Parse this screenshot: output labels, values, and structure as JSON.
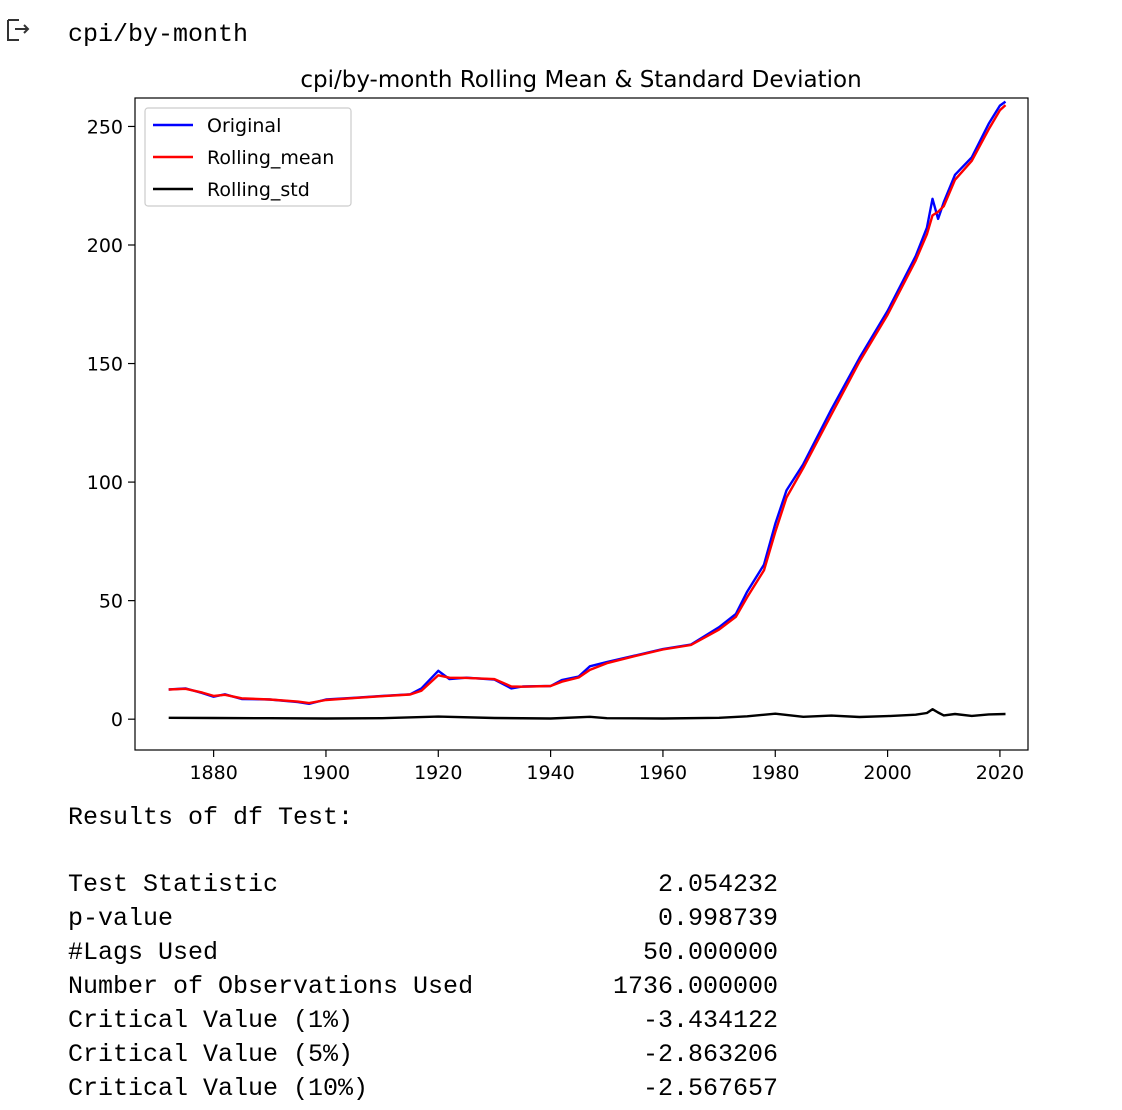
{
  "cell": {
    "output_icon": "output-arrow-icon",
    "title": "cpi/by-month"
  },
  "chart_data": {
    "type": "line",
    "title": "cpi/by-month Rolling Mean & Standard Deviation",
    "xlabel": "",
    "ylabel": "",
    "xlim": [
      1866,
      2025
    ],
    "ylim": [
      -13,
      262
    ],
    "xticks": [
      1880,
      1900,
      1920,
      1940,
      1960,
      1980,
      2000,
      2020
    ],
    "yticks": [
      0,
      50,
      100,
      150,
      200,
      250
    ],
    "grid": false,
    "legend_position": "top-left",
    "series": [
      {
        "name": "Original",
        "color": "#0000ff",
        "x": [
          1872,
          1875,
          1878,
          1880,
          1882,
          1885,
          1890,
          1895,
          1897,
          1900,
          1905,
          1910,
          1915,
          1917,
          1920,
          1922,
          1925,
          1930,
          1933,
          1935,
          1940,
          1942,
          1945,
          1947,
          1950,
          1955,
          1960,
          1965,
          1970,
          1973,
          1975,
          1978,
          1980,
          1982,
          1985,
          1990,
          1995,
          2000,
          2005,
          2007,
          2008,
          2009,
          2010,
          2012,
          2015,
          2018,
          2020,
          2021
        ],
        "y": [
          12.5,
          13.0,
          11.0,
          9.5,
          10.5,
          8.5,
          8.3,
          7.2,
          6.5,
          8.3,
          9.0,
          9.8,
          10.5,
          13.0,
          20.4,
          16.9,
          17.5,
          16.7,
          13.0,
          13.8,
          14.0,
          16.5,
          18.0,
          22.3,
          24.1,
          26.8,
          29.6,
          31.5,
          38.8,
          44.4,
          53.8,
          65.2,
          82.4,
          96.5,
          107.6,
          130.7,
          152.4,
          172.2,
          195.3,
          207.3,
          219.5,
          211.0,
          218.1,
          229.6,
          237.0,
          251.1,
          258.8,
          260.5
        ]
      },
      {
        "name": "Rolling_mean",
        "color": "#ff0000",
        "x": [
          1872,
          1875,
          1878,
          1880,
          1882,
          1885,
          1890,
          1895,
          1897,
          1900,
          1905,
          1910,
          1915,
          1917,
          1920,
          1922,
          1925,
          1930,
          1933,
          1935,
          1940,
          1942,
          1945,
          1947,
          1950,
          1955,
          1960,
          1965,
          1970,
          1973,
          1975,
          1978,
          1980,
          1982,
          1985,
          1990,
          1995,
          2000,
          2005,
          2007,
          2008,
          2009,
          2010,
          2012,
          2015,
          2018,
          2020,
          2021
        ],
        "y": [
          12.5,
          12.8,
          11.2,
          9.8,
          10.3,
          8.8,
          8.3,
          7.4,
          6.8,
          8.1,
          8.9,
          9.7,
          10.4,
          12.0,
          18.5,
          17.5,
          17.4,
          16.9,
          13.8,
          13.7,
          14.0,
          15.8,
          17.6,
          20.8,
          23.6,
          26.6,
          29.4,
          31.3,
          37.8,
          43.2,
          51.5,
          62.8,
          79.0,
          93.5,
          106.0,
          128.5,
          150.8,
          170.6,
          193.5,
          204.5,
          212.5,
          214.0,
          216.4,
          227.5,
          235.5,
          248.8,
          256.8,
          259.0
        ]
      },
      {
        "name": "Rolling_std",
        "color": "#000000",
        "x": [
          1872,
          1880,
          1890,
          1900,
          1910,
          1920,
          1930,
          1940,
          1947,
          1950,
          1960,
          1970,
          1975,
          1980,
          1985,
          1990,
          1995,
          2000,
          2005,
          2007,
          2008,
          2009,
          2010,
          2012,
          2015,
          2018,
          2021
        ],
        "y": [
          0.6,
          0.5,
          0.4,
          0.3,
          0.4,
          1.1,
          0.5,
          0.3,
          1.0,
          0.4,
          0.3,
          0.6,
          1.2,
          2.3,
          1.0,
          1.5,
          0.9,
          1.3,
          1.9,
          2.6,
          4.2,
          2.8,
          1.6,
          2.2,
          1.4,
          2.0,
          2.2
        ]
      }
    ]
  },
  "results": {
    "title": "Results of df Test:",
    "rows": [
      {
        "label": "Test Statistic",
        "value": "2.054232"
      },
      {
        "label": "p-value",
        "value": "0.998739"
      },
      {
        "label": "#Lags Used",
        "value": "50.000000"
      },
      {
        "label": "Number of Observations Used",
        "value": "1736.000000"
      },
      {
        "label": "Critical Value (1%)",
        "value": "-3.434122"
      },
      {
        "label": "Critical Value (5%)",
        "value": "-2.863206"
      },
      {
        "label": "Critical Value (10%)",
        "value": "-2.567657"
      }
    ]
  }
}
